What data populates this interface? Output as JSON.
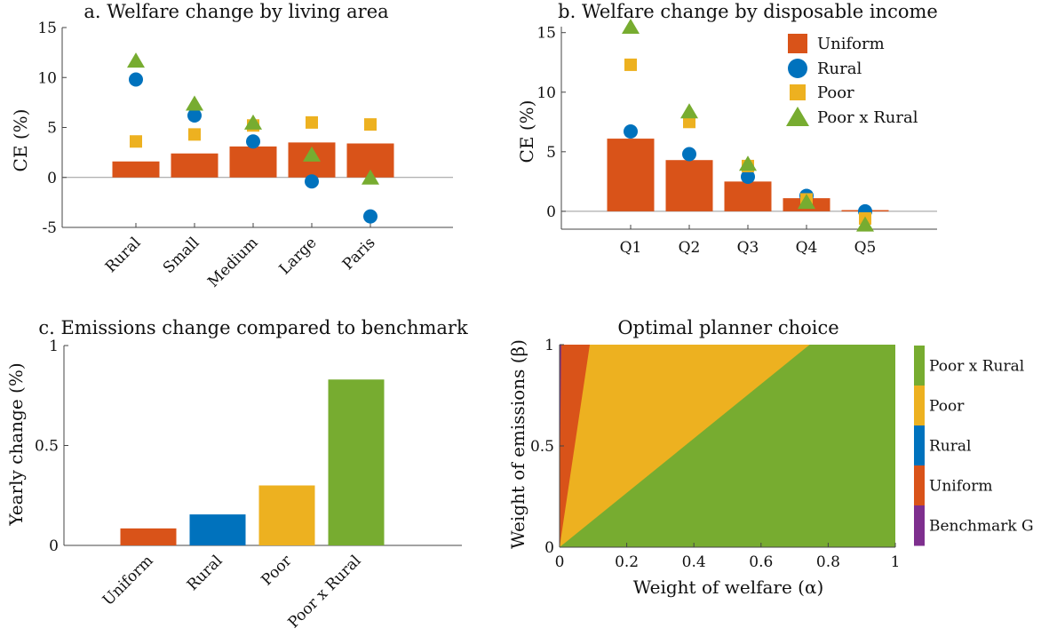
{
  "colors": {
    "uniform": "#D95319",
    "rural": "#0072BD",
    "poor": "#EDB120",
    "poor_rural": "#77AC30",
    "benchmark": "#7E2F8E"
  },
  "chart_data": [
    {
      "id": "a",
      "type": "bar",
      "title": "a. Welfare change by living area",
      "xlabel": "",
      "ylabel": "CE (%)",
      "ylim": [
        -5,
        15
      ],
      "yticks": [
        -5,
        0,
        5,
        10,
        15
      ],
      "ytick_labels": [
        "-5",
        "0",
        "5",
        "10",
        "15"
      ],
      "categories": [
        "Rural",
        "Small",
        "Medium",
        "Large",
        "Paris"
      ],
      "series": [
        {
          "name": "Uniform",
          "marker": "bar",
          "color": "#D95319",
          "values": [
            1.6,
            2.4,
            3.1,
            3.5,
            3.4
          ]
        },
        {
          "name": "Rural",
          "marker": "circle",
          "color": "#0072BD",
          "values": [
            9.8,
            6.2,
            3.6,
            -0.4,
            -3.9
          ]
        },
        {
          "name": "Poor",
          "marker": "square",
          "color": "#EDB120",
          "values": [
            3.6,
            4.3,
            5.2,
            5.5,
            5.3
          ]
        },
        {
          "name": "Poor x Rural",
          "marker": "triangle",
          "color": "#77AC30",
          "values": [
            11.7,
            7.4,
            5.5,
            2.3,
            0.0
          ]
        }
      ]
    },
    {
      "id": "b",
      "type": "bar",
      "title": "b. Welfare change by disposable income",
      "xlabel": "",
      "ylabel": "CE (%)",
      "ylim": [
        -1.5,
        15.5
      ],
      "yticks": [
        0,
        5,
        10,
        15
      ],
      "ytick_labels": [
        "0",
        "5",
        "10",
        "15"
      ],
      "categories": [
        "Q1",
        "Q2",
        "Q3",
        "Q4",
        "Q5"
      ],
      "legend": {
        "position": "top-right",
        "entries": [
          "Uniform",
          "Rural",
          "Poor",
          "Poor x Rural"
        ]
      },
      "series": [
        {
          "name": "Uniform",
          "marker": "bar",
          "color": "#D95319",
          "values": [
            6.1,
            4.3,
            2.5,
            1.1,
            0.1
          ]
        },
        {
          "name": "Rural",
          "marker": "circle",
          "color": "#0072BD",
          "values": [
            6.7,
            4.8,
            2.9,
            1.3,
            0.0
          ]
        },
        {
          "name": "Poor",
          "marker": "square",
          "color": "#EDB120",
          "values": [
            12.3,
            7.5,
            3.8,
            1.0,
            -0.6
          ]
        },
        {
          "name": "Poor x Rural",
          "marker": "triangle",
          "color": "#77AC30",
          "values": [
            15.5,
            8.4,
            4.0,
            0.8,
            -1.1
          ]
        }
      ]
    },
    {
      "id": "c",
      "type": "bar",
      "title": "c. Emissions change compared to benchmark",
      "xlabel": "",
      "ylabel": "Yearly change (%)",
      "ylim": [
        0,
        1
      ],
      "yticks": [
        0,
        0.5,
        1
      ],
      "ytick_labels": [
        "0",
        "0.5",
        "1"
      ],
      "categories": [
        "Uniform",
        "Rural",
        "Poor",
        "Poor x Rural"
      ],
      "values": [
        0.085,
        0.155,
        0.3,
        0.83
      ],
      "bar_colors": [
        "#D95319",
        "#0072BD",
        "#EDB120",
        "#77AC30"
      ]
    },
    {
      "id": "d",
      "type": "heatmap",
      "title": "Optimal planner choice",
      "xlabel": "Weight of welfare (α)",
      "ylabel": "Weight of emissions (β)",
      "xlim": [
        0,
        1
      ],
      "ylim": [
        0,
        1
      ],
      "xticks": [
        0,
        0.2,
        0.4,
        0.6,
        0.8,
        1
      ],
      "xtick_labels": [
        "0",
        "0.2",
        "0.4",
        "0.6",
        "0.8",
        "1"
      ],
      "yticks": [
        0,
        0.5,
        1
      ],
      "ytick_labels": [
        "0",
        "0.5",
        "1"
      ],
      "regions": [
        {
          "name": "Benchmark G",
          "color": "#7E2F8E",
          "boundary_x_at_beta1": 0.005
        },
        {
          "name": "Uniform",
          "color": "#D95319",
          "boundary_x_at_beta1": 0.09,
          "boundary_x_at_beta0": 0.0
        },
        {
          "name": "Poor",
          "color": "#EDB120",
          "boundary_x_at_beta1": 0.745,
          "boundary_x_at_beta0": 0.0
        },
        {
          "name": "Poor x Rural",
          "color": "#77AC30"
        }
      ],
      "colorbar": {
        "labels": [
          "Poor x Rural",
          "Poor",
          "Rural",
          "Uniform",
          "Benchmark G"
        ],
        "colors": [
          "#77AC30",
          "#EDB120",
          "#0072BD",
          "#D95319",
          "#7E2F8E"
        ]
      }
    }
  ]
}
